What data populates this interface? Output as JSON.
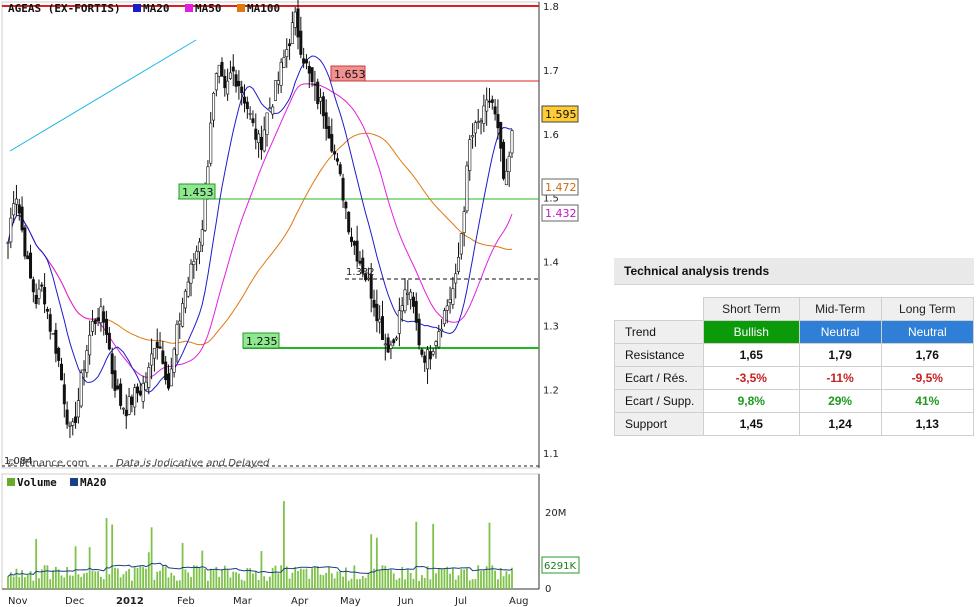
{
  "chart_data": [
    {
      "type": "candlestick",
      "title": "AGEAS (EX-FORTIS)",
      "legend": [
        "MA20",
        "MA50",
        "MA100"
      ],
      "colors": {
        "MA20": "#1c1cc8",
        "MA50": "#e020e0",
        "MA100": "#e07810",
        "resistance": "#e02020",
        "support": "#22b822",
        "trendline": "#19b4e8"
      },
      "x_labels": [
        "Nov",
        "Dec",
        "2012",
        "Feb",
        "Mar",
        "Apr",
        "May",
        "Jun",
        "Jul",
        "Aug"
      ],
      "y_ticks": [
        "1.8",
        "1.7",
        "1.6",
        "1.5",
        "1.4",
        "1.3",
        "1.2",
        "1.1"
      ],
      "ylim": [
        1.08,
        1.8
      ],
      "close_approx": [
        1.43,
        1.52,
        1.45,
        1.38,
        1.34,
        1.36,
        1.3,
        1.26,
        1.19,
        1.12,
        1.18,
        1.25,
        1.3,
        1.32,
        1.3,
        1.22,
        1.18,
        1.17,
        1.19,
        1.2,
        1.22,
        1.28,
        1.26,
        1.2,
        1.28,
        1.34,
        1.38,
        1.42,
        1.47,
        1.63,
        1.7,
        1.66,
        1.7,
        1.68,
        1.65,
        1.61,
        1.58,
        1.63,
        1.66,
        1.7,
        1.74,
        1.78,
        1.73,
        1.69,
        1.66,
        1.64,
        1.6,
        1.55,
        1.5,
        1.44,
        1.41,
        1.38,
        1.35,
        1.31,
        1.27,
        1.27,
        1.32,
        1.36,
        1.32,
        1.26,
        1.25,
        1.28,
        1.31,
        1.34,
        1.37,
        1.47,
        1.59,
        1.61,
        1.63,
        1.66,
        1.6,
        1.51,
        1.595
      ],
      "price_labels": {
        "resistance": "1.653",
        "support_1": "1.453",
        "support_2": "1.235",
        "level": "1.332",
        "low": "1.084",
        "last": "1.595",
        "ma100_last": "1.472",
        "ma50_last": "1.432"
      },
      "watermark": "© ilFinance.com",
      "notice": "Data is Indicative and Delayed"
    },
    {
      "type": "bar",
      "title": "Volume",
      "legend": [
        "Volume",
        "MA20"
      ],
      "y_ticks": [
        "20M",
        "0"
      ],
      "last_label": "6291K"
    }
  ],
  "trends": {
    "title": "Technical analysis trends",
    "columns": [
      "Short Term",
      "Mid-Term",
      "Long Term"
    ],
    "rows": [
      {
        "label": "Trend",
        "values": [
          "Bullish",
          "Neutral",
          "Neutral"
        ]
      },
      {
        "label": "Resistance",
        "values": [
          "1,65",
          "1,79",
          "1,76"
        ]
      },
      {
        "label": "Ecart / Rés.",
        "values": [
          "-3,5%",
          "-11%",
          "-9,5%"
        ]
      },
      {
        "label": "Ecart / Supp.",
        "values": [
          "9,8%",
          "29%",
          "41%"
        ]
      },
      {
        "label": "Support",
        "values": [
          "1,45",
          "1,24",
          "1,13"
        ]
      }
    ]
  }
}
